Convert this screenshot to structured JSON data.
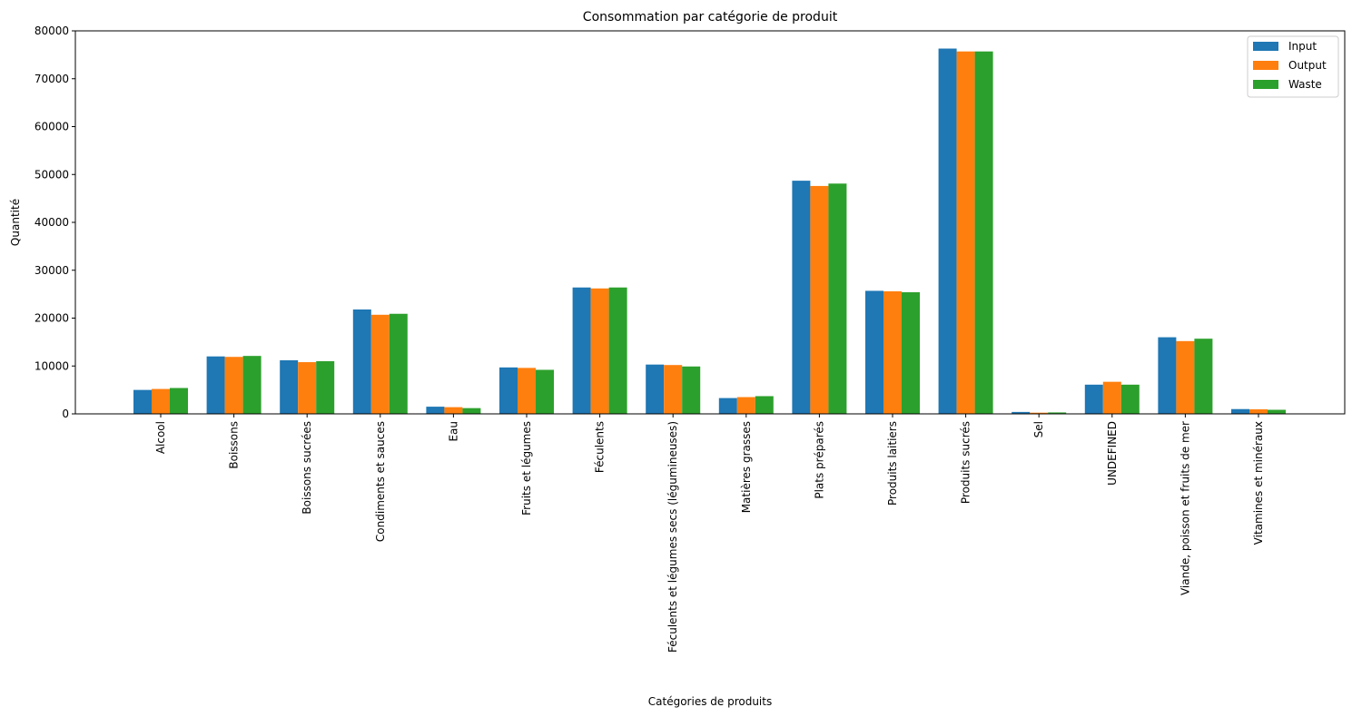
{
  "chart_data": {
    "type": "bar",
    "title": "Consommation par catégorie de produit",
    "xlabel": "Catégories de produits",
    "ylabel": "Quantité",
    "ylim": [
      0,
      80000
    ],
    "yticks": [
      0,
      10000,
      20000,
      30000,
      40000,
      50000,
      60000,
      70000,
      80000
    ],
    "grid": false,
    "legend_position": "top-right",
    "categories": [
      "Alcool",
      "Boissons",
      "Boissons sucrées",
      "Condiments et sauces",
      "Eau",
      "Fruits et légumes",
      "Féculents",
      "Féculents et légumes secs (légumineuses)",
      "Matières grasses",
      "Plats préparés",
      "Produits laitiers",
      "Produits sucrés",
      "Sel",
      "UNDEFINED",
      "Viande, poisson et fruits de mer",
      "Vitamines et minéraux"
    ],
    "series": [
      {
        "name": "Input",
        "color": "#1f77b4",
        "values": [
          5000,
          12000,
          11200,
          21800,
          1500,
          9700,
          26400,
          10300,
          3300,
          48700,
          25700,
          76300,
          400,
          6100,
          16000,
          1000
        ]
      },
      {
        "name": "Output",
        "color": "#ff7f0e",
        "values": [
          5200,
          11900,
          10800,
          20700,
          1400,
          9600,
          26200,
          10200,
          3500,
          47600,
          25600,
          75700,
          250,
          6700,
          15200,
          950
        ]
      },
      {
        "name": "Waste",
        "color": "#2ca02c",
        "values": [
          5400,
          12100,
          11000,
          20900,
          1200,
          9200,
          26400,
          9900,
          3700,
          48100,
          25400,
          75700,
          300,
          6100,
          15700,
          850
        ]
      }
    ]
  }
}
